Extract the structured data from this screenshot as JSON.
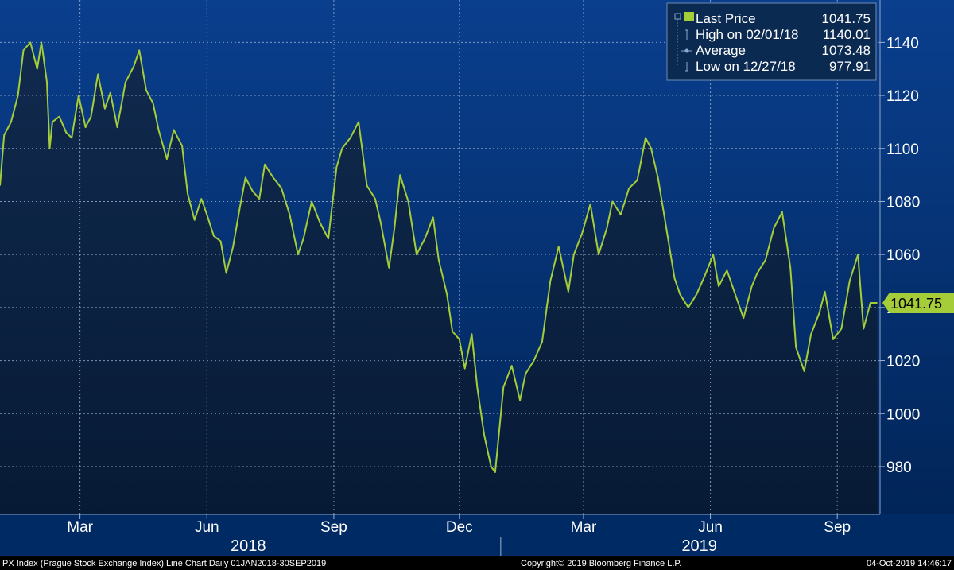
{
  "chart_data": {
    "type": "line",
    "title": "",
    "xlabel": "",
    "ylabel": "",
    "ylim": [
      962,
      1156
    ],
    "y_ticks": [
      980,
      1000,
      1020,
      1040,
      1060,
      1080,
      1100,
      1120,
      1140
    ],
    "x_range": [
      "2018-01-02",
      "2019-10-02"
    ],
    "x_month_ticks": [
      {
        "date": "2018-03-01",
        "label": "Mar"
      },
      {
        "date": "2018-06-01",
        "label": "Jun"
      },
      {
        "date": "2018-09-01",
        "label": "Sep"
      },
      {
        "date": "2018-12-01",
        "label": "Dec"
      },
      {
        "date": "2019-03-01",
        "label": "Mar"
      },
      {
        "date": "2019-06-01",
        "label": "Jun"
      },
      {
        "date": "2019-09-01",
        "label": "Sep"
      }
    ],
    "x_year_labels": [
      {
        "date": "2018-07-01",
        "label": "2018"
      },
      {
        "date": "2019-05-24",
        "label": "2019"
      }
    ],
    "year_divider": "2018-12-31",
    "grid": true,
    "legend_position": "top-right",
    "series": [
      {
        "name": "Last Price",
        "color": "#a5cd39",
        "x": [
          "2018-01-02",
          "2018-01-05",
          "2018-01-10",
          "2018-01-15",
          "2018-01-19",
          "2018-01-24",
          "2018-01-29",
          "2018-02-01",
          "2018-02-05",
          "2018-02-07",
          "2018-02-09",
          "2018-02-14",
          "2018-02-19",
          "2018-02-23",
          "2018-02-28",
          "2018-03-05",
          "2018-03-09",
          "2018-03-14",
          "2018-03-19",
          "2018-03-23",
          "2018-03-28",
          "2018-04-03",
          "2018-04-09",
          "2018-04-13",
          "2018-04-18",
          "2018-04-23",
          "2018-04-27",
          "2018-05-03",
          "2018-05-08",
          "2018-05-14",
          "2018-05-18",
          "2018-05-23",
          "2018-05-28",
          "2018-06-01",
          "2018-06-06",
          "2018-06-11",
          "2018-06-15",
          "2018-06-20",
          "2018-06-25",
          "2018-06-29",
          "2018-07-04",
          "2018-07-09",
          "2018-07-13",
          "2018-07-19",
          "2018-07-25",
          "2018-07-31",
          "2018-08-06",
          "2018-08-10",
          "2018-08-16",
          "2018-08-22",
          "2018-08-28",
          "2018-09-03",
          "2018-09-07",
          "2018-09-13",
          "2018-09-19",
          "2018-09-25",
          "2018-10-01",
          "2018-10-05",
          "2018-10-11",
          "2018-10-15",
          "2018-10-19",
          "2018-10-25",
          "2018-10-31",
          "2018-11-06",
          "2018-11-12",
          "2018-11-16",
          "2018-11-22",
          "2018-11-26",
          "2018-12-01",
          "2018-12-05",
          "2018-12-10",
          "2018-12-14",
          "2018-12-19",
          "2018-12-24",
          "2018-12-27",
          "2019-01-02",
          "2019-01-08",
          "2019-01-14",
          "2019-01-18",
          "2019-01-24",
          "2019-01-30",
          "2019-02-05",
          "2019-02-11",
          "2019-02-18",
          "2019-02-22",
          "2019-02-28",
          "2019-03-06",
          "2019-03-12",
          "2019-03-18",
          "2019-03-22",
          "2019-03-28",
          "2019-04-03",
          "2019-04-09",
          "2019-04-15",
          "2019-04-19",
          "2019-04-24",
          "2019-04-30",
          "2019-05-06",
          "2019-05-10",
          "2019-05-16",
          "2019-05-22",
          "2019-05-28",
          "2019-06-03",
          "2019-06-07",
          "2019-06-13",
          "2019-06-19",
          "2019-06-25",
          "2019-07-01",
          "2019-07-05",
          "2019-07-11",
          "2019-07-17",
          "2019-07-23",
          "2019-07-29",
          "2019-08-02",
          "2019-08-08",
          "2019-08-13",
          "2019-08-19",
          "2019-08-23",
          "2019-08-29",
          "2019-09-04",
          "2019-09-10",
          "2019-09-16",
          "2019-09-20",
          "2019-09-25",
          "2019-09-30"
        ],
        "y": [
          1086,
          1105,
          1110,
          1120,
          1137,
          1140,
          1130,
          1140.01,
          1125,
          1100,
          1110,
          1112,
          1106,
          1104,
          1120,
          1108,
          1112,
          1128,
          1115,
          1121,
          1108,
          1125,
          1131,
          1137,
          1122,
          1117,
          1107,
          1096,
          1107,
          1101,
          1083,
          1073,
          1081,
          1075,
          1067,
          1065,
          1053,
          1063,
          1078,
          1089,
          1084,
          1081,
          1094,
          1089,
          1085,
          1075,
          1060,
          1066,
          1080,
          1072,
          1066,
          1093,
          1100,
          1104,
          1110,
          1086,
          1081,
          1072,
          1055,
          1070,
          1090,
          1080,
          1060,
          1066,
          1074,
          1058,
          1045,
          1031,
          1028,
          1017,
          1030,
          1010,
          992,
          980,
          977.91,
          1010,
          1018,
          1005,
          1015,
          1020,
          1027,
          1050,
          1063,
          1046,
          1060,
          1068,
          1079,
          1060,
          1070,
          1080,
          1075,
          1085,
          1088,
          1104,
          1100,
          1089,
          1070,
          1051,
          1045,
          1040,
          1045,
          1052,
          1060,
          1048,
          1054,
          1045,
          1036,
          1048,
          1053,
          1058,
          1070,
          1076,
          1055,
          1025,
          1016,
          1030,
          1038,
          1046,
          1028,
          1032,
          1050,
          1060,
          1032,
          1041.75,
          1041.75
        ]
      }
    ],
    "last_value_label": "1041.75",
    "legend": [
      {
        "marker": "square",
        "label": "Last Price",
        "value": "1041.75"
      },
      {
        "marker": "high",
        "label": "High on 02/01/18",
        "value": "1140.01"
      },
      {
        "marker": "avg",
        "label": "Average",
        "value": "1073.48"
      },
      {
        "marker": "low",
        "label": "Low on 12/27/18",
        "value": "977.91"
      }
    ],
    "colors": {
      "background_top": "#0a3c8a",
      "background_bottom": "#001a40",
      "area_fill": "#0f2545",
      "line": "#a5cd39",
      "grid": "#9eb3d1"
    }
  },
  "footer": {
    "left": "PX Index (Prague Stock Exchange Index) Line Chart  Daily 01JAN2018-30SEP2019",
    "center": "Copyright© 2019 Bloomberg Finance L.P.",
    "right": "04-Oct-2019 14:46:17"
  }
}
